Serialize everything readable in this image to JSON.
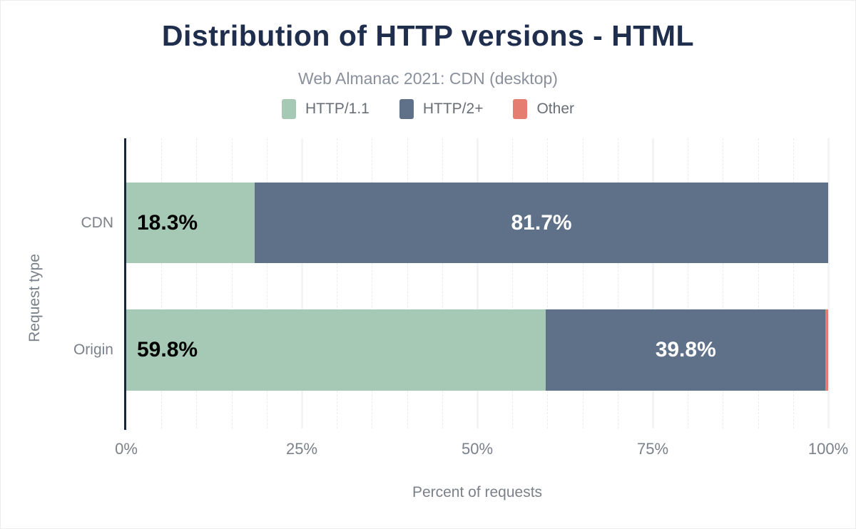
{
  "title": "Distribution of HTTP versions - HTML",
  "subtitle": "Web Almanac 2021: CDN (desktop)",
  "legend": [
    {
      "label": "HTTP/1.1",
      "color": "#a6c9b5"
    },
    {
      "label": "HTTP/2+",
      "color": "#5f7189"
    },
    {
      "label": "Other",
      "color": "#e57e71"
    }
  ],
  "axes": {
    "x_label": "Percent of requests",
    "y_label": "Request type",
    "x_ticks": [
      "0%",
      "25%",
      "50%",
      "75%",
      "100%"
    ],
    "y_ticks": [
      "CDN",
      "Origin"
    ]
  },
  "colors": {
    "title": "#202e4e",
    "subtitle": "#8a909b",
    "axis_line": "#16263f",
    "tick_text": "#7b8089",
    "http11": "#a6c9b5",
    "http2plus": "#5f7189",
    "other": "#e57e71"
  },
  "chart_data": {
    "type": "bar",
    "orientation": "horizontal",
    "stacked": true,
    "title": "Distribution of HTTP versions - HTML",
    "subtitle": "Web Almanac 2021: CDN (desktop)",
    "xlabel": "Percent of requests",
    "ylabel": "Request type",
    "xlim": [
      0,
      100
    ],
    "x_tick_step": 25,
    "grid": "vertical, minor every 5%, major every 25%",
    "legend_position": "top",
    "categories": [
      "CDN",
      "Origin"
    ],
    "series": [
      {
        "name": "HTTP/1.1",
        "color": "#a6c9b5",
        "values": [
          18.3,
          59.8
        ]
      },
      {
        "name": "HTTP/2+",
        "color": "#5f7189",
        "values": [
          81.7,
          39.8
        ]
      },
      {
        "name": "Other",
        "color": "#e57e71",
        "values": [
          0.0,
          0.4
        ]
      }
    ],
    "bar_labels": [
      [
        "18.3%",
        "81.7%",
        ""
      ],
      [
        "59.8%",
        "39.8%",
        ""
      ]
    ],
    "label_colors": [
      "#000000",
      "#ffffff",
      "#000000"
    ]
  }
}
